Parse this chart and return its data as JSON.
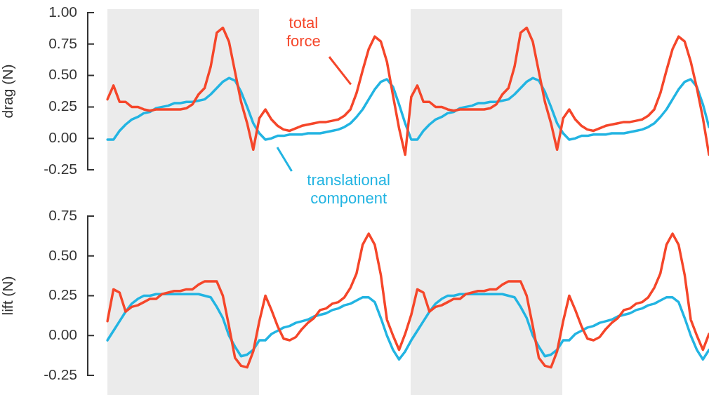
{
  "chart_data": [
    {
      "type": "line",
      "ylabel": "drag (N)",
      "categories": [
        null,
        null,
        null,
        null,
        null,
        null,
        null,
        null,
        null,
        null,
        null,
        null,
        null,
        null,
        null,
        null,
        null,
        null,
        null,
        null,
        null,
        null,
        null,
        null,
        null,
        null,
        null,
        null,
        null,
        null,
        null,
        null,
        null,
        null,
        null,
        null,
        null,
        null,
        null,
        null,
        null,
        null,
        null,
        null,
        null,
        null,
        null,
        null,
        null,
        null,
        null,
        null,
        null,
        null,
        null,
        null,
        null,
        null,
        null,
        null,
        null,
        null,
        null,
        null,
        null,
        null,
        null,
        null,
        null,
        null,
        null,
        null,
        null,
        null,
        null,
        null,
        null,
        null,
        null,
        null,
        null,
        null,
        null,
        null,
        null,
        null,
        null,
        null,
        null,
        null,
        null,
        null,
        null,
        null,
        null,
        null,
        null,
        null,
        null,
        null
      ],
      "ylim": [
        -0.25,
        1
      ],
      "yticks": [
        {
          "value": 1,
          "label": "1.00"
        },
        {
          "value": 0.75,
          "label": "0.75"
        },
        {
          "value": 0.5,
          "label": "0.50"
        },
        {
          "value": 0.25,
          "label": "0.25"
        },
        {
          "value": 0,
          "label": "0.00"
        },
        {
          "value": -0.25,
          "label": "-0.25"
        }
      ],
      "grid": false,
      "legend": false,
      "marker": "none",
      "tick_labels": "y",
      "series": [
        {
          "name": "total force",
          "color": "#f5462a",
          "values": [
            0.31,
            0.42,
            0.29,
            0.29,
            0.25,
            0.25,
            0.23,
            0.22,
            0.23,
            0.23,
            0.23,
            0.23,
            0.23,
            0.24,
            0.27,
            0.35,
            0.4,
            0.57,
            0.84,
            0.88,
            0.77,
            0.53,
            0.29,
            0.12,
            -0.09,
            0.16,
            0.23,
            0.15,
            0.1,
            0.07,
            0.06,
            0.08,
            0.1,
            0.11,
            0.12,
            0.13,
            0.13,
            0.14,
            0.15,
            0.18,
            0.23,
            0.36,
            0.54,
            0.71,
            0.81,
            0.77,
            0.61,
            0.34,
            0.08,
            -0.13,
            0.33,
            0.42,
            0.29,
            0.29,
            0.25,
            0.25,
            0.23,
            0.22,
            0.23,
            0.23,
            0.23,
            0.23,
            0.23,
            0.24,
            0.27,
            0.35,
            0.4,
            0.57,
            0.84,
            0.88,
            0.77,
            0.53,
            0.29,
            0.12,
            -0.09,
            0.16,
            0.23,
            0.15,
            0.1,
            0.07,
            0.06,
            0.08,
            0.1,
            0.11,
            0.12,
            0.13,
            0.13,
            0.14,
            0.15,
            0.18,
            0.23,
            0.36,
            0.54,
            0.71,
            0.81,
            0.77,
            0.61,
            0.4,
            0.16,
            -0.13
          ]
        },
        {
          "name": "translational component",
          "color": "#22b4e2",
          "values": [
            -0.01,
            -0.01,
            0.06,
            0.11,
            0.15,
            0.17,
            0.2,
            0.21,
            0.24,
            0.25,
            0.26,
            0.28,
            0.28,
            0.29,
            0.29,
            0.3,
            0.31,
            0.35,
            0.4,
            0.45,
            0.48,
            0.46,
            0.37,
            0.25,
            0.12,
            0.04,
            -0.01,
            0,
            0.02,
            0.02,
            0.03,
            0.03,
            0.03,
            0.04,
            0.04,
            0.04,
            0.05,
            0.06,
            0.07,
            0.09,
            0.12,
            0.17,
            0.23,
            0.31,
            0.39,
            0.45,
            0.47,
            0.41,
            0.27,
            0.12,
            -0.01,
            -0.01,
            0.06,
            0.11,
            0.15,
            0.17,
            0.2,
            0.21,
            0.24,
            0.25,
            0.26,
            0.28,
            0.28,
            0.29,
            0.29,
            0.3,
            0.31,
            0.35,
            0.4,
            0.45,
            0.48,
            0.46,
            0.37,
            0.25,
            0.12,
            0.04,
            -0.01,
            0,
            0.02,
            0.02,
            0.03,
            0.03,
            0.03,
            0.04,
            0.04,
            0.04,
            0.05,
            0.06,
            0.07,
            0.09,
            0.12,
            0.17,
            0.23,
            0.31,
            0.39,
            0.45,
            0.47,
            0.41,
            0.27,
            0.09
          ]
        }
      ]
    },
    {
      "type": "line",
      "ylabel": "lift (N)",
      "categories": [
        null,
        null,
        null,
        null,
        null,
        null,
        null,
        null,
        null,
        null,
        null,
        null,
        null,
        null,
        null,
        null,
        null,
        null,
        null,
        null,
        null,
        null,
        null,
        null,
        null,
        null,
        null,
        null,
        null,
        null,
        null,
        null,
        null,
        null,
        null,
        null,
        null,
        null,
        null,
        null,
        null,
        null,
        null,
        null,
        null,
        null,
        null,
        null,
        null,
        null,
        null,
        null,
        null,
        null,
        null,
        null,
        null,
        null,
        null,
        null,
        null,
        null,
        null,
        null,
        null,
        null,
        null,
        null,
        null,
        null,
        null,
        null,
        null,
        null,
        null,
        null,
        null,
        null,
        null,
        null,
        null,
        null,
        null,
        null,
        null,
        null,
        null,
        null,
        null,
        null,
        null,
        null,
        null,
        null,
        null,
        null,
        null,
        null,
        null,
        null
      ],
      "ylim": [
        -0.25,
        0.75
      ],
      "yticks": [
        {
          "value": 0.75,
          "label": "0.75"
        },
        {
          "value": 0.5,
          "label": "0.50"
        },
        {
          "value": 0.25,
          "label": "0.25"
        },
        {
          "value": 0,
          "label": "0.00"
        },
        {
          "value": -0.25,
          "label": "-0.25"
        }
      ],
      "grid": false,
      "legend": false,
      "marker": "none",
      "tick_labels": "y",
      "series": [
        {
          "color": "#f5462a",
          "values": [
            0.09,
            0.29,
            0.27,
            0.15,
            0.18,
            0.19,
            0.21,
            0.23,
            0.23,
            0.26,
            0.27,
            0.28,
            0.28,
            0.29,
            0.29,
            0.32,
            0.34,
            0.34,
            0.34,
            0.25,
            0.06,
            -0.14,
            -0.19,
            -0.2,
            -0.1,
            0.09,
            0.25,
            0.16,
            0.06,
            -0.02,
            -0.03,
            -0.01,
            0.04,
            0.08,
            0.11,
            0.16,
            0.17,
            0.2,
            0.21,
            0.24,
            0.3,
            0.39,
            0.57,
            0.64,
            0.57,
            0.38,
            0.1,
            0,
            -0.09,
            0.01,
            0.13,
            0.29,
            0.27,
            0.15,
            0.18,
            0.19,
            0.21,
            0.23,
            0.23,
            0.26,
            0.27,
            0.28,
            0.28,
            0.29,
            0.29,
            0.32,
            0.34,
            0.34,
            0.34,
            0.25,
            0.06,
            -0.14,
            -0.19,
            -0.2,
            -0.1,
            0.09,
            0.25,
            0.16,
            0.06,
            -0.02,
            -0.03,
            -0.01,
            0.04,
            0.08,
            0.11,
            0.16,
            0.17,
            0.2,
            0.21,
            0.24,
            0.3,
            0.39,
            0.57,
            0.64,
            0.57,
            0.38,
            0.1,
            0,
            -0.09,
            0.01
          ]
        },
        {
          "color": "#22b4e2",
          "values": [
            -0.03,
            0.03,
            0.09,
            0.15,
            0.2,
            0.23,
            0.25,
            0.25,
            0.26,
            0.26,
            0.26,
            0.26,
            0.26,
            0.26,
            0.26,
            0.26,
            0.25,
            0.24,
            0.18,
            0.11,
            0,
            -0.07,
            -0.13,
            -0.12,
            -0.09,
            -0.03,
            -0.03,
            0.01,
            0.03,
            0.05,
            0.06,
            0.08,
            0.09,
            0.1,
            0.12,
            0.13,
            0.14,
            0.16,
            0.17,
            0.19,
            0.2,
            0.22,
            0.24,
            0.24,
            0.21,
            0.11,
            0,
            -0.09,
            -0.15,
            -0.1,
            -0.03,
            0.03,
            0.09,
            0.15,
            0.2,
            0.23,
            0.25,
            0.25,
            0.26,
            0.26,
            0.26,
            0.26,
            0.26,
            0.26,
            0.26,
            0.26,
            0.25,
            0.24,
            0.18,
            0.11,
            0,
            -0.07,
            -0.13,
            -0.12,
            -0.09,
            -0.03,
            -0.03,
            0.01,
            0.03,
            0.05,
            0.06,
            0.08,
            0.09,
            0.1,
            0.12,
            0.13,
            0.14,
            0.16,
            0.17,
            0.19,
            0.2,
            0.22,
            0.24,
            0.24,
            0.21,
            0.11,
            0,
            -0.09,
            -0.15,
            -0.09
          ]
        }
      ]
    }
  ]
}
